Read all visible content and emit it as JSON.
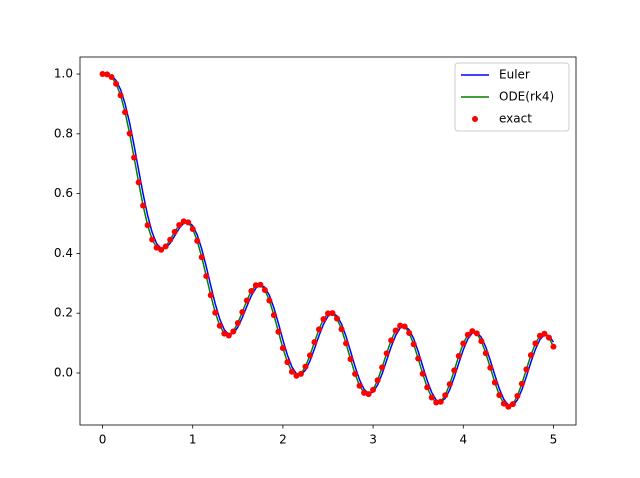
{
  "chart_data": {
    "type": "line",
    "x": [
      0,
      0.05,
      0.1,
      0.15,
      0.2,
      0.25,
      0.3,
      0.35,
      0.4,
      0.45,
      0.5,
      0.55,
      0.6,
      0.65,
      0.7,
      0.75,
      0.8,
      0.85,
      0.9,
      0.95,
      1,
      1.05,
      1.1,
      1.15,
      1.2,
      1.25,
      1.3,
      1.35,
      1.4,
      1.45,
      1.5,
      1.55,
      1.6,
      1.65,
      1.7,
      1.75,
      1.8,
      1.85,
      1.9,
      1.95,
      2,
      2.05,
      2.1,
      2.15,
      2.2,
      2.25,
      2.3,
      2.35,
      2.4,
      2.45,
      2.5,
      2.55,
      2.6,
      2.65,
      2.7,
      2.75,
      2.8,
      2.85,
      2.9,
      2.95,
      3,
      3.05,
      3.1,
      3.15,
      3.2,
      3.25,
      3.3,
      3.35,
      3.4,
      3.45,
      3.5,
      3.55,
      3.6,
      3.65,
      3.7,
      3.75,
      3.8,
      3.85,
      3.9,
      3.95,
      4,
      4.05,
      4.1,
      4.15,
      4.2,
      4.25,
      4.3,
      4.35,
      4.4,
      4.45,
      4.5,
      4.55,
      4.6,
      4.65,
      4.7,
      4.75,
      4.8,
      4.85,
      4.9,
      4.95,
      5
    ],
    "series": [
      {
        "name": "Euler",
        "color": "#0000ff",
        "style": "line",
        "values": [
          1.0,
          0.9994,
          0.9943,
          0.9788,
          0.9482,
          0.9005,
          0.8368,
          0.7609,
          0.679,
          0.5986,
          0.5269,
          0.4702,
          0.4328,
          0.4158,
          0.4178,
          0.4344,
          0.4588,
          0.4836,
          0.5012,
          0.5056,
          0.4928,
          0.4618,
          0.4146,
          0.3558,
          0.2921,
          0.2311,
          0.18,
          0.1448,
          0.1285,
          0.1321,
          0.153,
          0.1855,
          0.2231,
          0.2584,
          0.284,
          0.2943,
          0.2864,
          0.26,
          0.218,
          0.1659,
          0.1106,
          0.0598,
          0.0204,
          -0.0025,
          -0.006,
          0.0093,
          0.0402,
          0.0811,
          0.1246,
          0.1631,
          0.1898,
          0.1999,
          0.191,
          0.164,
          0.1226,
          0.0727,
          0.0216,
          -0.023,
          -0.0546,
          -0.0687,
          -0.0634,
          -0.0402,
          -0.0029,
          0.0422,
          0.0875,
          0.1256,
          0.1502,
          0.1569,
          0.1447,
          0.115,
          0.0722,
          0.023,
          -0.0253,
          -0.0651,
          -0.0904,
          -0.0975,
          -0.0852,
          -0.0559,
          -0.0144,
          0.0327,
          0.0777,
          0.1134,
          0.1341,
          0.1363,
          0.1196,
          0.0863,
          0.0418,
          -0.0072,
          -0.0529,
          -0.0883,
          -0.1078,
          -0.1086,
          -0.0904,
          -0.0564,
          -0.012,
          0.0359,
          0.0794,
          0.1118,
          0.1278,
          0.1248,
          0.1032
        ]
      },
      {
        "name": "ODE(rk4)",
        "color": "#008000",
        "style": "line",
        "values": [
          1.0,
          0.9987,
          0.9899,
          0.9677,
          0.9287,
          0.8723,
          0.8012,
          0.7205,
          0.6375,
          0.5597,
          0.494,
          0.4463,
          0.4192,
          0.4123,
          0.4233,
          0.4455,
          0.472,
          0.4951,
          0.5073,
          0.5038,
          0.4817,
          0.4418,
          0.3873,
          0.3242,
          0.26,
          0.2021,
          0.1579,
          0.1316,
          0.1254,
          0.1387,
          0.1672,
          0.2038,
          0.2424,
          0.2744,
          0.2935,
          0.2951,
          0.2776,
          0.2423,
          0.1936,
          0.1381,
          0.0831,
          0.0364,
          0.0043,
          -0.0092,
          -0.0028,
          0.0214,
          0.059,
          0.1032,
          0.146,
          0.1802,
          0.1994,
          0.2003,
          0.1817,
          0.1463,
          0.0989,
          0.0464,
          -0.0032,
          -0.0427,
          -0.0664,
          -0.0709,
          -0.0559,
          -0.0244,
          0.0186,
          0.0658,
          0.1092,
          0.142,
          0.1583,
          0.1555,
          0.1338,
          0.0961,
          0.0483,
          -0.0024,
          -0.0482,
          -0.082,
          -0.0988,
          -0.0961,
          -0.0743,
          -0.0374,
          0.0086,
          0.0567,
          0.0987,
          0.1281,
          0.1401,
          0.1325,
          0.1066,
          0.066,
          0.0175,
          -0.0318,
          -0.074,
          -0.1025,
          -0.1131,
          -0.104,
          -0.0768,
          -0.036,
          0.0121,
          0.0596,
          0.0992,
          0.1244,
          0.1311,
          0.1184,
          0.088
        ]
      },
      {
        "name": "exact",
        "color": "#ff0000",
        "style": "dots",
        "values": [
          1.0,
          0.9987,
          0.9899,
          0.9677,
          0.9287,
          0.8723,
          0.8012,
          0.7205,
          0.6375,
          0.5597,
          0.494,
          0.4463,
          0.4192,
          0.4123,
          0.4233,
          0.4455,
          0.472,
          0.4951,
          0.5073,
          0.5038,
          0.4817,
          0.4418,
          0.3873,
          0.3242,
          0.26,
          0.2021,
          0.1579,
          0.1316,
          0.1254,
          0.1387,
          0.1672,
          0.2038,
          0.2424,
          0.2744,
          0.2935,
          0.2951,
          0.2776,
          0.2423,
          0.1936,
          0.1381,
          0.0831,
          0.0364,
          0.0043,
          -0.0092,
          -0.0028,
          0.0214,
          0.059,
          0.1032,
          0.146,
          0.1802,
          0.1994,
          0.2003,
          0.1817,
          0.1463,
          0.0989,
          0.0464,
          -0.0032,
          -0.0427,
          -0.0664,
          -0.0709,
          -0.0559,
          -0.0244,
          0.0186,
          0.0658,
          0.1092,
          0.142,
          0.1583,
          0.1555,
          0.1338,
          0.0961,
          0.0483,
          -0.0024,
          -0.0482,
          -0.082,
          -0.0988,
          -0.0961,
          -0.0743,
          -0.0374,
          0.0086,
          0.0567,
          0.0987,
          0.1281,
          0.1401,
          0.1325,
          0.1066,
          0.066,
          0.0175,
          -0.0318,
          -0.074,
          -0.1025,
          -0.1131,
          -0.104,
          -0.0768,
          -0.036,
          0.0121,
          0.0596,
          0.0992,
          0.1244,
          0.1311,
          0.1184,
          0.088
        ]
      }
    ],
    "xlim": [
      -0.25,
      5.25
    ],
    "xticks": [
      0,
      1,
      2,
      3,
      4,
      5
    ],
    "ylim": [
      -0.174,
      1.057
    ],
    "yticks": [
      {
        "value": 0,
        "label": "0.0"
      },
      {
        "value": 0.2,
        "label": "0.2"
      },
      {
        "value": 0.4,
        "label": "0.4"
      },
      {
        "value": 0.6,
        "label": "0.6"
      },
      {
        "value": 0.8,
        "label": "0.8"
      },
      {
        "value": 1,
        "label": "1.0"
      }
    ],
    "grid": false,
    "legend": "upper right"
  }
}
